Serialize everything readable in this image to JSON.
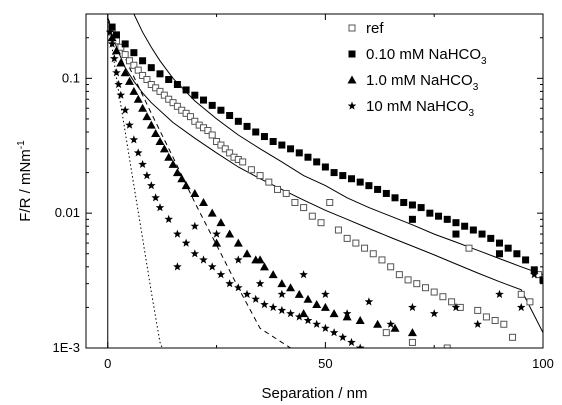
{
  "chart_data": {
    "type": "scatter",
    "xlabel": "Separation / nm",
    "ylabel": "F/R / mNm",
    "ylabel_sup": "-1",
    "xlim": [
      -5,
      100
    ],
    "ylim": [
      0.001,
      0.3
    ],
    "yscale": "log",
    "x_ticks": [
      0,
      50,
      100
    ],
    "x_tick_labels": [
      "0",
      "50",
      "100"
    ],
    "y_ticks": [
      0.001,
      0.01,
      0.1
    ],
    "y_tick_labels": [
      "1E-3",
      "0.01",
      "0.1"
    ],
    "grid": false,
    "legend_position": "top-right",
    "series": [
      {
        "name": "ref",
        "name_main": "ref",
        "name_sub": "",
        "marker": "open-square",
        "points": [
          [
            1,
            0.22
          ],
          [
            2,
            0.19
          ],
          [
            3,
            0.17
          ],
          [
            4,
            0.15
          ],
          [
            5,
            0.135
          ],
          [
            6,
            0.125
          ],
          [
            7,
            0.115
          ],
          [
            8,
            0.105
          ],
          [
            9,
            0.098
          ],
          [
            10,
            0.09
          ],
          [
            11,
            0.085
          ],
          [
            12,
            0.08
          ],
          [
            13,
            0.075
          ],
          [
            14,
            0.07
          ],
          [
            15,
            0.066
          ],
          [
            16,
            0.062
          ],
          [
            17,
            0.058
          ],
          [
            18,
            0.055
          ],
          [
            19,
            0.052
          ],
          [
            20,
            0.048
          ],
          [
            21,
            0.045
          ],
          [
            22,
            0.043
          ],
          [
            23,
            0.041
          ],
          [
            24,
            0.038
          ],
          [
            25,
            0.034
          ],
          [
            26,
            0.032
          ],
          [
            27,
            0.03
          ],
          [
            28,
            0.028
          ],
          [
            29,
            0.026
          ],
          [
            30,
            0.025
          ],
          [
            31,
            0.024
          ],
          [
            33,
            0.021
          ],
          [
            35,
            0.019
          ],
          [
            37,
            0.017
          ],
          [
            39,
            0.015
          ],
          [
            41,
            0.014
          ],
          [
            43,
            0.012
          ],
          [
            45,
            0.011
          ],
          [
            47,
            0.0095
          ],
          [
            49,
            0.0085
          ],
          [
            51,
            0.012
          ],
          [
            53,
            0.0075
          ],
          [
            55,
            0.0065
          ],
          [
            57,
            0.006
          ],
          [
            59,
            0.0055
          ],
          [
            61,
            0.005
          ],
          [
            63,
            0.0045
          ],
          [
            65,
            0.004
          ],
          [
            67,
            0.0035
          ],
          [
            69,
            0.0032
          ],
          [
            71,
            0.003
          ],
          [
            73,
            0.0028
          ],
          [
            75,
            0.0026
          ],
          [
            77,
            0.0024
          ],
          [
            79,
            0.0022
          ],
          [
            81,
            0.002
          ],
          [
            83,
            0.0055
          ],
          [
            85,
            0.0019
          ],
          [
            87,
            0.0017
          ],
          [
            89,
            0.0016
          ],
          [
            91,
            0.0015
          ],
          [
            93,
            0.0012
          ],
          [
            95,
            0.0025
          ],
          [
            97,
            0.0022
          ],
          [
            99,
            0.0035
          ],
          [
            64,
            0.0013
          ],
          [
            70,
            0.0011
          ],
          [
            78,
            0.001
          ]
        ]
      },
      {
        "name": "0.10 mM NaHCO3",
        "name_main": "0.10 mM NaHCO",
        "name_sub": "3",
        "marker": "filled-square",
        "points": [
          [
            1,
            0.24
          ],
          [
            2,
            0.21
          ],
          [
            4,
            0.18
          ],
          [
            6,
            0.155
          ],
          [
            8,
            0.135
          ],
          [
            10,
            0.12
          ],
          [
            12,
            0.108
          ],
          [
            14,
            0.098
          ],
          [
            16,
            0.09
          ],
          [
            18,
            0.082
          ],
          [
            20,
            0.075
          ],
          [
            22,
            0.069
          ],
          [
            24,
            0.063
          ],
          [
            26,
            0.058
          ],
          [
            28,
            0.053
          ],
          [
            30,
            0.048
          ],
          [
            32,
            0.044
          ],
          [
            34,
            0.04
          ],
          [
            36,
            0.037
          ],
          [
            38,
            0.034
          ],
          [
            40,
            0.032
          ],
          [
            42,
            0.03
          ],
          [
            44,
            0.028
          ],
          [
            46,
            0.026
          ],
          [
            48,
            0.024
          ],
          [
            50,
            0.022
          ],
          [
            52,
            0.02
          ],
          [
            54,
            0.019
          ],
          [
            56,
            0.018
          ],
          [
            58,
            0.017
          ],
          [
            60,
            0.016
          ],
          [
            62,
            0.015
          ],
          [
            64,
            0.014
          ],
          [
            66,
            0.013
          ],
          [
            68,
            0.012
          ],
          [
            70,
            0.0115
          ],
          [
            72,
            0.011
          ],
          [
            74,
            0.01
          ],
          [
            76,
            0.0095
          ],
          [
            78,
            0.009
          ],
          [
            80,
            0.0085
          ],
          [
            82,
            0.008
          ],
          [
            84,
            0.0075
          ],
          [
            86,
            0.007
          ],
          [
            88,
            0.0065
          ],
          [
            90,
            0.006
          ],
          [
            92,
            0.0055
          ],
          [
            94,
            0.005
          ],
          [
            96,
            0.0045
          ],
          [
            98,
            0.0038
          ],
          [
            100,
            0.0032
          ],
          [
            70,
            0.009
          ],
          [
            80,
            0.007
          ],
          [
            90,
            0.005
          ]
        ]
      },
      {
        "name": "1.0 mM NaHCO3",
        "name_main": "1.0 mM NaHCO",
        "name_sub": "3",
        "marker": "filled-triangle",
        "points": [
          [
            1,
            0.2
          ],
          [
            2,
            0.16
          ],
          [
            3,
            0.13
          ],
          [
            4,
            0.11
          ],
          [
            5,
            0.095
          ],
          [
            6,
            0.08
          ],
          [
            7,
            0.07
          ],
          [
            8,
            0.06
          ],
          [
            9,
            0.052
          ],
          [
            10,
            0.045
          ],
          [
            11,
            0.039
          ],
          [
            12,
            0.034
          ],
          [
            13,
            0.03
          ],
          [
            14,
            0.026
          ],
          [
            15,
            0.023
          ],
          [
            16,
            0.02
          ],
          [
            17,
            0.018
          ],
          [
            18,
            0.016
          ],
          [
            20,
            0.014
          ],
          [
            22,
            0.012
          ],
          [
            24,
            0.01
          ],
          [
            26,
            0.0085
          ],
          [
            28,
            0.007
          ],
          [
            30,
            0.006
          ],
          [
            32,
            0.005
          ],
          [
            34,
            0.0045
          ],
          [
            36,
            0.004
          ],
          [
            38,
            0.0035
          ],
          [
            40,
            0.003
          ],
          [
            42,
            0.0028
          ],
          [
            44,
            0.0025
          ],
          [
            46,
            0.0023
          ],
          [
            48,
            0.0021
          ],
          [
            50,
            0.002
          ],
          [
            52,
            0.0018
          ],
          [
            55,
            0.0017
          ],
          [
            58,
            0.0016
          ],
          [
            62,
            0.0015
          ],
          [
            66,
            0.0014
          ],
          [
            70,
            0.0013
          ],
          [
            25,
            0.006
          ],
          [
            35,
            0.0045
          ],
          [
            45,
            0.0018
          ]
        ]
      },
      {
        "name": "10 mM NaHCO3",
        "name_main": "10 mM NaHCO",
        "name_sub": "3",
        "marker": "filled-star",
        "points": [
          [
            0.5,
            0.22
          ],
          [
            1,
            0.18
          ],
          [
            1.5,
            0.14
          ],
          [
            2,
            0.11
          ],
          [
            2.5,
            0.09
          ],
          [
            3,
            0.075
          ],
          [
            4,
            0.058
          ],
          [
            5,
            0.045
          ],
          [
            6,
            0.035
          ],
          [
            7,
            0.028
          ],
          [
            8,
            0.023
          ],
          [
            9,
            0.019
          ],
          [
            10,
            0.016
          ],
          [
            11,
            0.013
          ],
          [
            12,
            0.011
          ],
          [
            14,
            0.009
          ],
          [
            16,
            0.007
          ],
          [
            18,
            0.006
          ],
          [
            20,
            0.005
          ],
          [
            22,
            0.0045
          ],
          [
            24,
            0.004
          ],
          [
            26,
            0.0035
          ],
          [
            28,
            0.003
          ],
          [
            30,
            0.0028
          ],
          [
            32,
            0.0025
          ],
          [
            34,
            0.0023
          ],
          [
            36,
            0.0021
          ],
          [
            38,
            0.002
          ],
          [
            40,
            0.0019
          ],
          [
            42,
            0.0018
          ],
          [
            44,
            0.0017
          ],
          [
            46,
            0.0016
          ],
          [
            48,
            0.0015
          ],
          [
            50,
            0.0014
          ],
          [
            52,
            0.0013
          ],
          [
            54,
            0.0012
          ],
          [
            56,
            0.0011
          ],
          [
            58,
            0.001
          ],
          [
            16,
            0.004
          ],
          [
            20,
            0.008
          ],
          [
            25,
            0.007
          ],
          [
            30,
            0.0045
          ],
          [
            35,
            0.003
          ],
          [
            40,
            0.0025
          ],
          [
            45,
            0.0035
          ],
          [
            50,
            0.0025
          ],
          [
            55,
            0.0018
          ],
          [
            60,
            0.0022
          ],
          [
            65,
            0.0015
          ],
          [
            70,
            0.002
          ],
          [
            75,
            0.0018
          ],
          [
            80,
            0.002
          ],
          [
            85,
            0.0015
          ],
          [
            90,
            0.0025
          ],
          [
            95,
            0.002
          ],
          [
            98,
            0.0035
          ]
        ]
      }
    ],
    "curves": [
      {
        "name": "",
        "style": "solid",
        "x": [
          6,
          8,
          10,
          12,
          15,
          20,
          25,
          30,
          35,
          40,
          45,
          50,
          55,
          60,
          65,
          70,
          75,
          80,
          85,
          90,
          95,
          100
        ],
        "y": [
          0.3,
          0.22,
          0.17,
          0.135,
          0.1,
          0.068,
          0.05,
          0.038,
          0.03,
          0.024,
          0.019,
          0.016,
          0.013,
          0.011,
          0.0095,
          0.0082,
          0.007,
          0.0061,
          0.0053,
          0.0046,
          0.004,
          0.0035
        ]
      },
      {
        "name": "",
        "style": "solid",
        "x": [
          0,
          2,
          4,
          6,
          8,
          10,
          15,
          20,
          25,
          30,
          35,
          40,
          45,
          50,
          55,
          60,
          65,
          70,
          75,
          80,
          85,
          90,
          95,
          100
        ],
        "y": [
          0.28,
          0.17,
          0.12,
          0.095,
          0.078,
          0.066,
          0.047,
          0.036,
          0.028,
          0.022,
          0.018,
          0.015,
          0.0125,
          0.0105,
          0.009,
          0.0077,
          0.0066,
          0.0057,
          0.0049,
          0.0042,
          0.0036,
          0.0031,
          0.0027,
          0.0013
        ]
      },
      {
        "name": "",
        "style": "dashed",
        "x": [
          0,
          5,
          10,
          15,
          20,
          25,
          30,
          35,
          40,
          42
        ],
        "y": [
          0.28,
          0.12,
          0.055,
          0.026,
          0.012,
          0.0058,
          0.0028,
          0.0014,
          0.0011,
          0.001
        ]
      },
      {
        "name": "",
        "style": "dotted",
        "x": [
          0,
          2,
          4,
          6,
          8,
          10,
          11,
          12,
          12.5
        ],
        "y": [
          0.28,
          0.1,
          0.04,
          0.016,
          0.0065,
          0.0026,
          0.0017,
          0.0011,
          0.001
        ]
      }
    ]
  }
}
